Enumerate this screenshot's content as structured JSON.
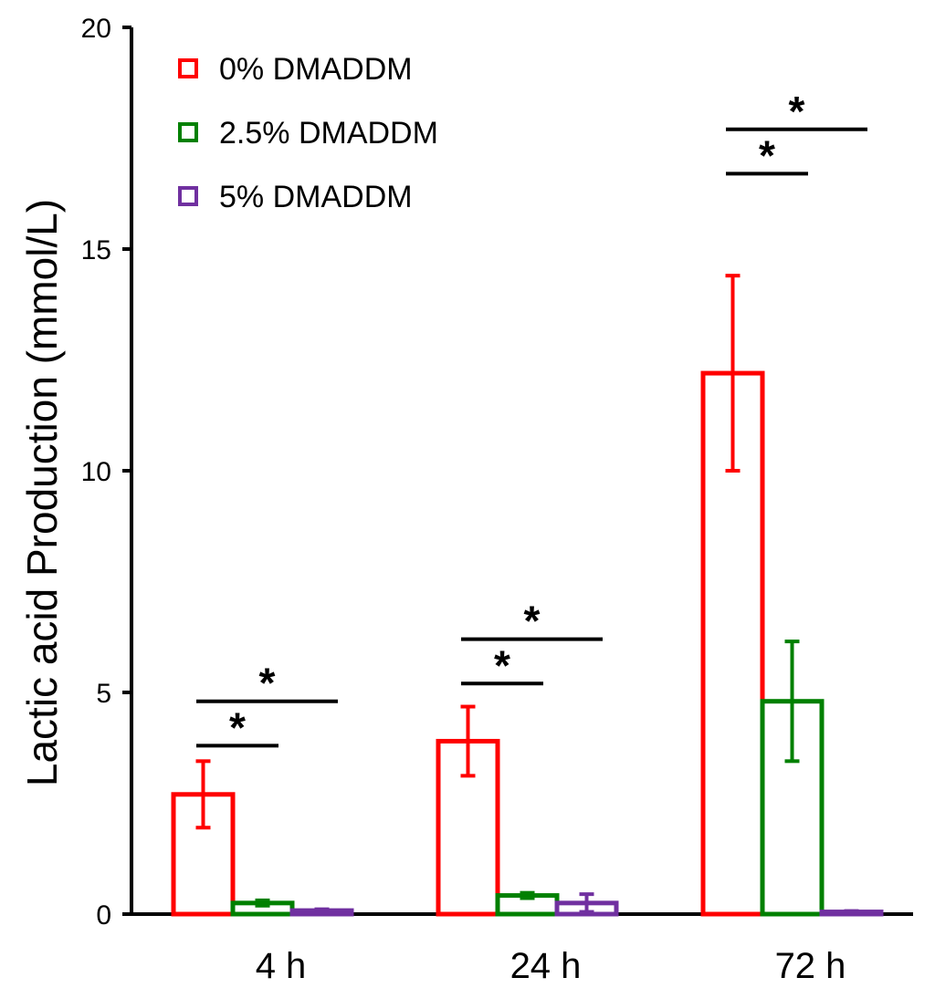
{
  "chart_data": {
    "type": "bar",
    "title": "",
    "xlabel": "",
    "ylabel": "Lactic acid  Production  (mmol/L)",
    "ylim": [
      0,
      20
    ],
    "yticks": [
      "0",
      "5",
      "10",
      "15",
      "20"
    ],
    "categories": [
      "4 h",
      "24 h",
      "72 h"
    ],
    "series": [
      {
        "name": "0% DMADDM",
        "color": "#ff0000",
        "values": [
          2.7,
          3.9,
          12.2
        ],
        "errors": [
          0.75,
          0.78,
          2.2
        ]
      },
      {
        "name": "2.5% DMADDM",
        "color": "#008000",
        "values": [
          0.25,
          0.42,
          4.8
        ],
        "errors": [
          0.06,
          0.06,
          1.35
        ]
      },
      {
        "name": "5% DMADDM",
        "color": "#7030a0",
        "values": [
          0.08,
          0.25,
          0.05
        ],
        "errors": [
          0.03,
          0.2,
          0.02
        ]
      }
    ],
    "significance": [
      {
        "category": "4 h",
        "from": "0% DMADDM",
        "to": "2.5% DMADDM",
        "level": 3.8,
        "label": "*"
      },
      {
        "category": "4 h",
        "from": "0% DMADDM",
        "to": "5% DMADDM",
        "level": 4.8,
        "label": "*"
      },
      {
        "category": "24 h",
        "from": "0% DMADDM",
        "to": "2.5% DMADDM",
        "level": 5.2,
        "label": "*"
      },
      {
        "category": "24 h",
        "from": "0% DMADDM",
        "to": "5% DMADDM",
        "level": 6.2,
        "label": "*"
      },
      {
        "category": "72 h",
        "from": "0% DMADDM",
        "to": "2.5% DMADDM",
        "level": 16.7,
        "label": "*"
      },
      {
        "category": "72 h",
        "from": "0% DMADDM",
        "to": "5% DMADDM",
        "level": 17.7,
        "label": "*"
      }
    ],
    "legend": {
      "position": "top-left"
    }
  }
}
